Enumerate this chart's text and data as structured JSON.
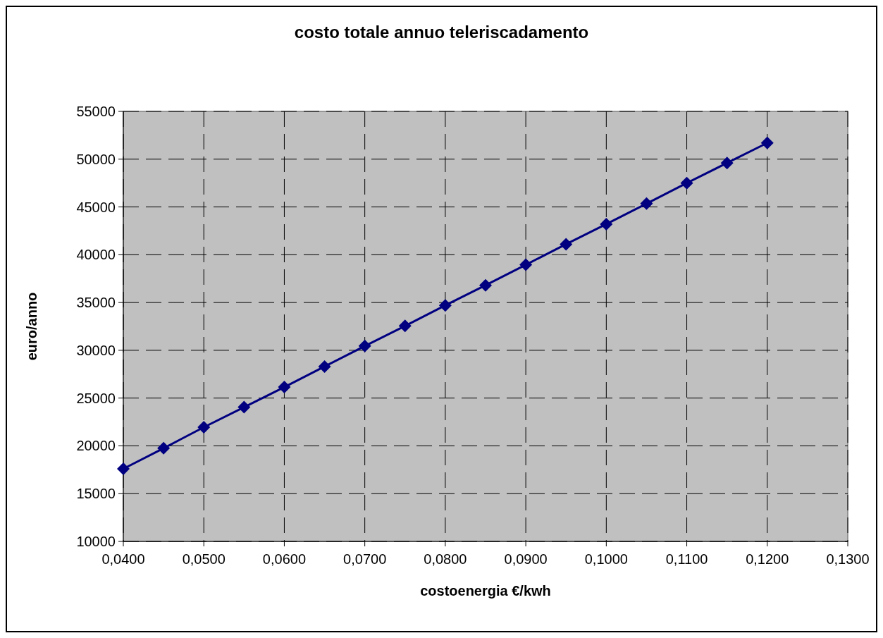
{
  "chart_data": {
    "type": "line",
    "title": "costo totale annuo teleriscadamento",
    "xlabel": "costoenergia €/kwh",
    "ylabel": "euro/anno",
    "x": [
      0.04,
      0.045,
      0.05,
      0.055,
      0.06,
      0.065,
      0.07,
      0.075,
      0.08,
      0.085,
      0.09,
      0.095,
      0.1,
      0.105,
      0.11,
      0.115,
      0.12
    ],
    "series": [
      {
        "color": "#000080",
        "values": [
          17600,
          19750,
          21950,
          24050,
          26150,
          28300,
          30450,
          32550,
          34700,
          36800,
          38950,
          41100,
          43200,
          45350,
          47500,
          49600,
          51700
        ]
      }
    ],
    "xlim": [
      0.04,
      0.13
    ],
    "xticks": [
      {
        "value": 0.04,
        "label": "0,0400"
      },
      {
        "value": 0.05,
        "label": "0,0500"
      },
      {
        "value": 0.06,
        "label": "0,0600"
      },
      {
        "value": 0.07,
        "label": "0,0700"
      },
      {
        "value": 0.08,
        "label": "0,0800"
      },
      {
        "value": 0.09,
        "label": "0,0900"
      },
      {
        "value": 0.1,
        "label": "0,1000"
      },
      {
        "value": 0.11,
        "label": "0,1100"
      },
      {
        "value": 0.12,
        "label": "0,1200"
      },
      {
        "value": 0.13,
        "label": "0,1300"
      }
    ],
    "ylim": [
      10000,
      55000
    ],
    "yticks": [
      10000,
      15000,
      20000,
      25000,
      30000,
      35000,
      40000,
      45000,
      50000,
      55000
    ],
    "grid": true,
    "marker": "diamond",
    "line_style": "solid"
  }
}
